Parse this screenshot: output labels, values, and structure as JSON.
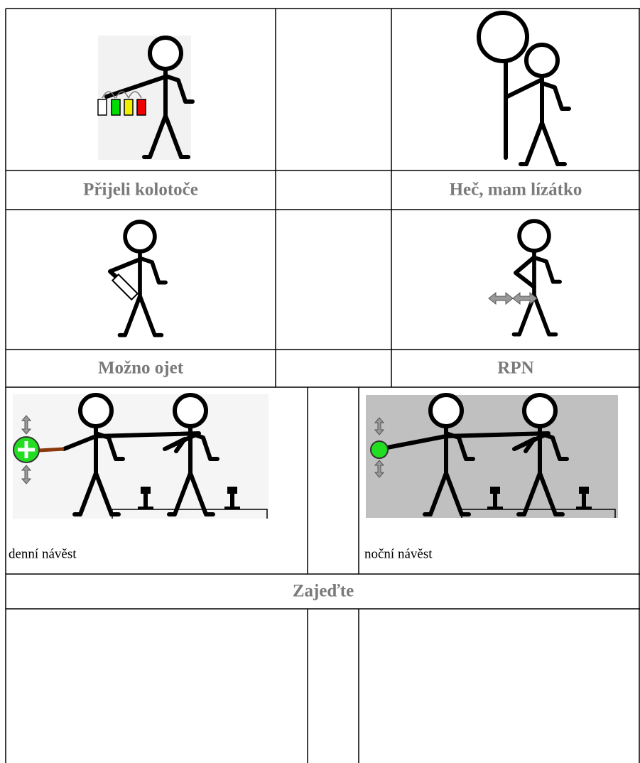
{
  "table1": {
    "rows": [
      [
        "Přijeli kolotoče",
        "Heč, mam lízátko"
      ],
      [
        "Možno ojet",
        "RPN"
      ]
    ]
  },
  "table2": {
    "captions": [
      "denní návěst",
      "noční návěst"
    ],
    "heading": "Zajeďte"
  }
}
